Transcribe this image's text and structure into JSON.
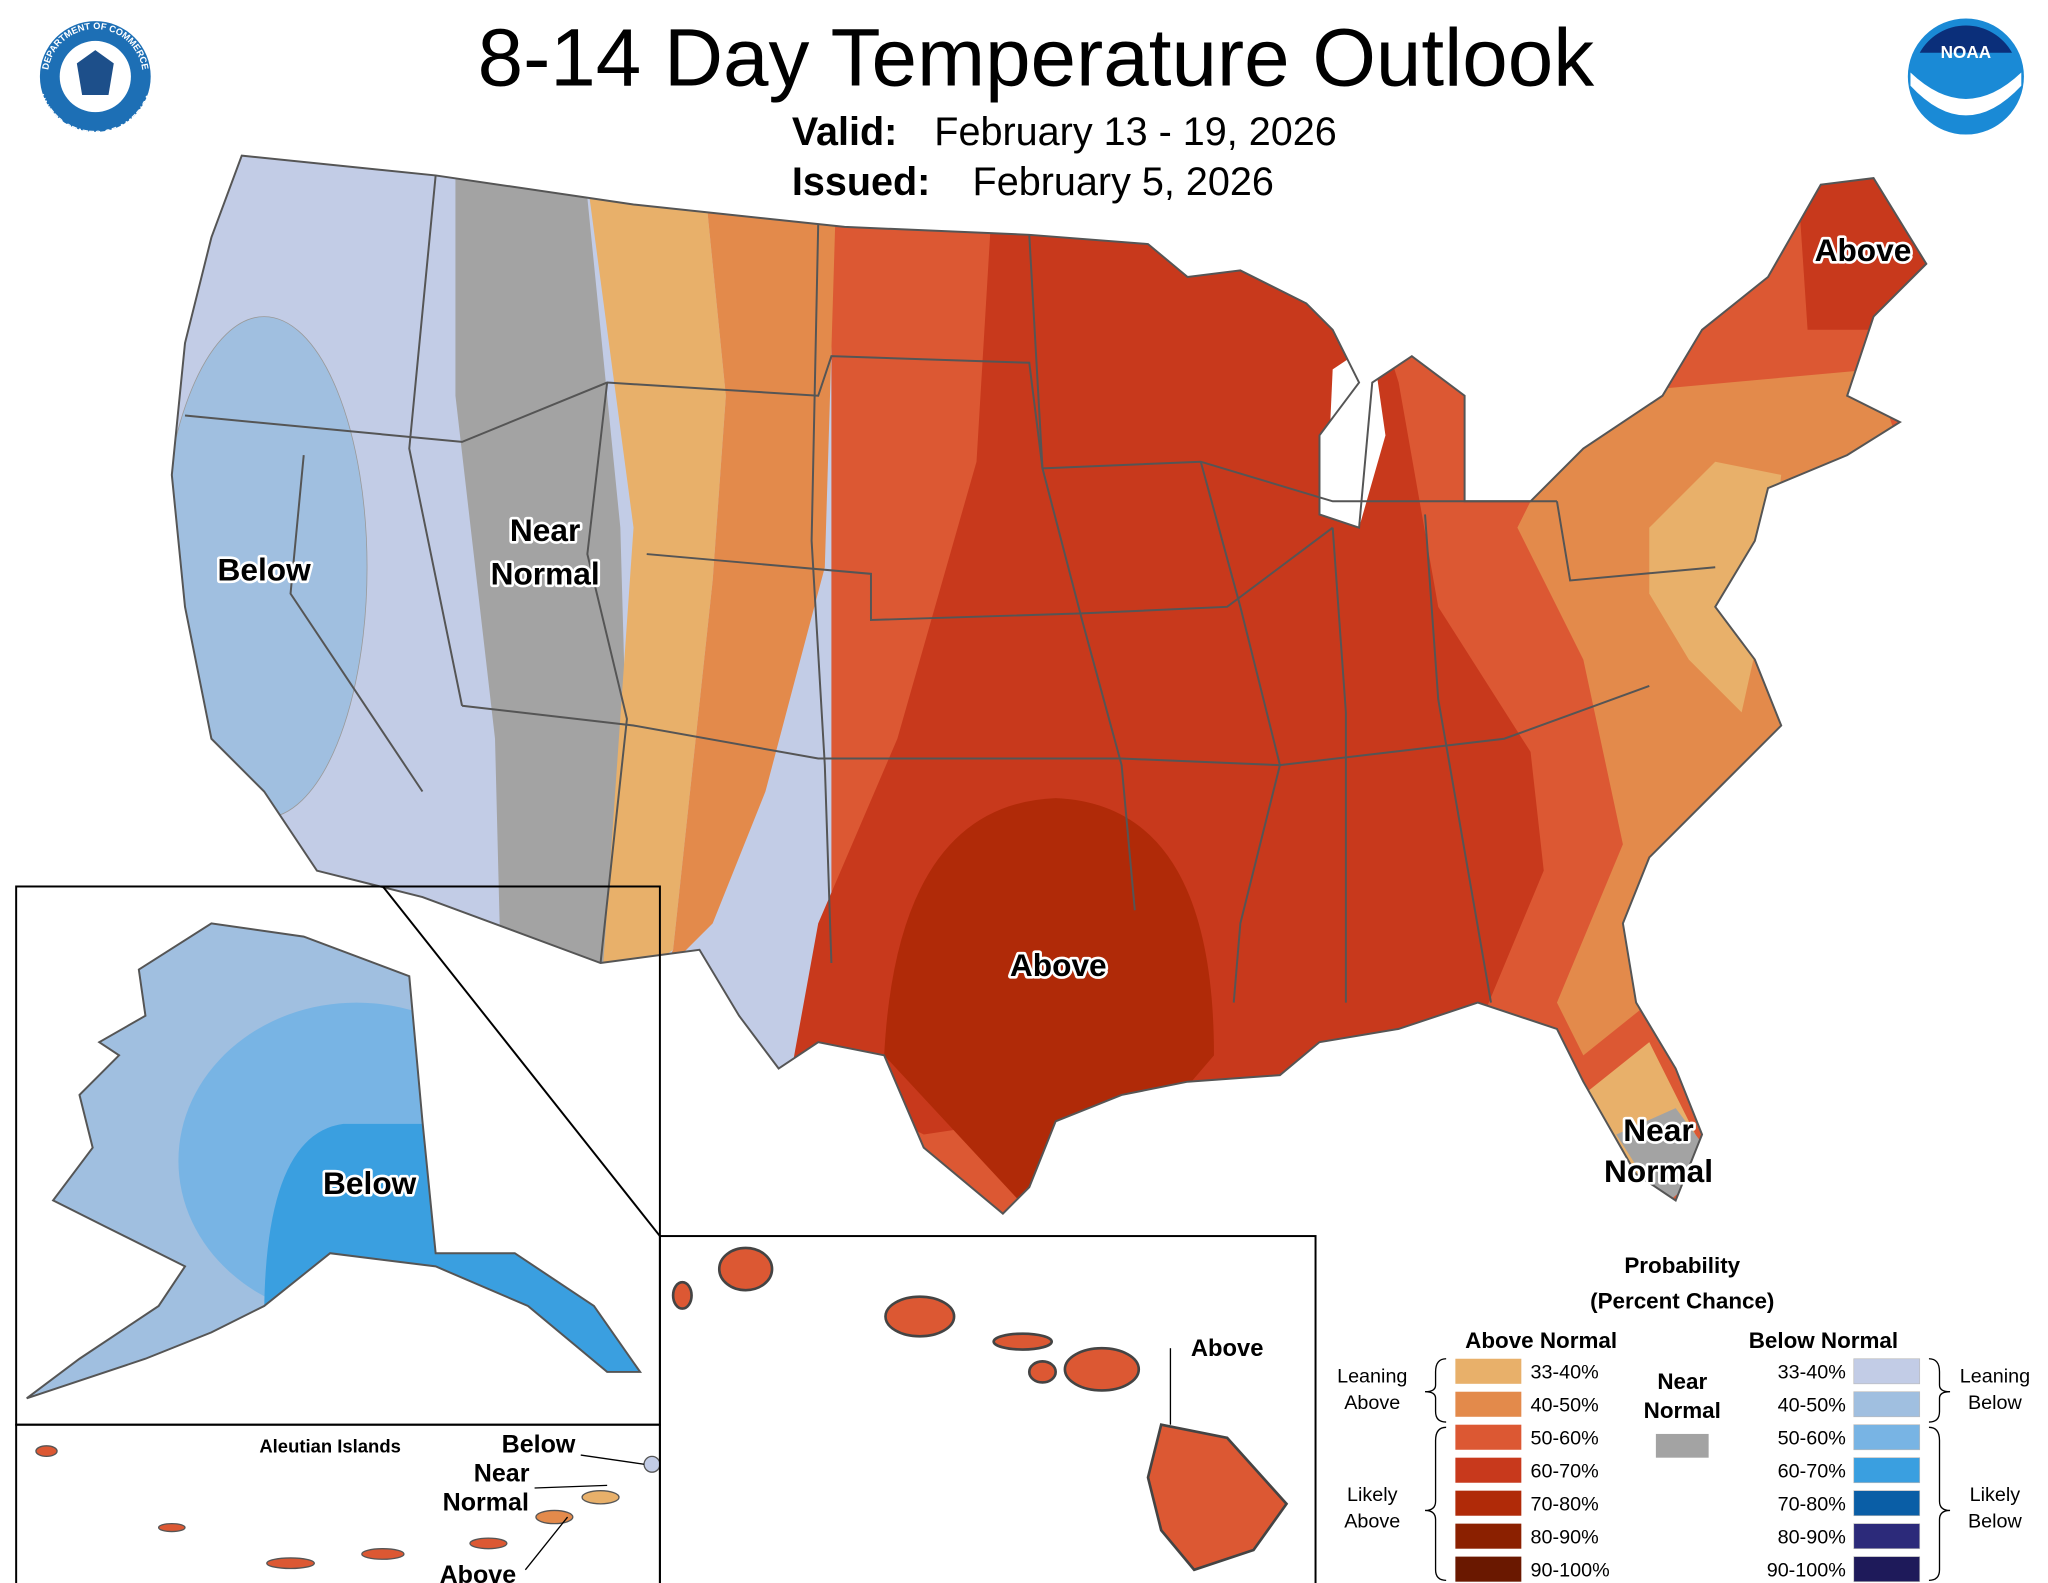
{
  "header": {
    "title": "8-14 Day Temperature Outlook",
    "valid_label": "Valid:",
    "valid": "February 13 - 19, 2026",
    "issued_label": "Issued:",
    "issued": "February 5, 2026"
  },
  "logos": {
    "commerce_top": "DEPARTMENT OF COMMERCE",
    "commerce_bottom": "UNITED STATES OF AMERICA",
    "noaa": "NOAA"
  },
  "map_labels": {
    "west": "Below",
    "rockies": [
      "Near",
      "Normal"
    ],
    "texas": "Above",
    "maine": "Above",
    "florida": [
      "Near",
      "Normal"
    ],
    "alaska": "Below",
    "aleutian_title": "Aleutian Islands",
    "aleutian_below": "Below",
    "aleutian_near": [
      "Near",
      "Normal"
    ],
    "aleutian_above": "Above",
    "hawaii": "Above"
  },
  "legend": {
    "title": [
      "Probability",
      "(Percent Chance)"
    ],
    "above_header": "Above Normal",
    "below_header": "Below Normal",
    "near_header": [
      "Near",
      "Normal"
    ],
    "near_color": "#a3a3a3",
    "leaning_above": [
      "Leaning",
      "Above"
    ],
    "likely_above": [
      "Likely",
      "Above"
    ],
    "leaning_below": [
      "Leaning",
      "Below"
    ],
    "likely_below": [
      "Likely",
      "Below"
    ],
    "above": [
      {
        "range": "33-40%",
        "color": "#e8b06a"
      },
      {
        "range": "40-50%",
        "color": "#e38a4b"
      },
      {
        "range": "50-60%",
        "color": "#dc5833"
      },
      {
        "range": "60-70%",
        "color": "#c8391c"
      },
      {
        "range": "70-80%",
        "color": "#b02a08"
      },
      {
        "range": "80-90%",
        "color": "#8b2000"
      },
      {
        "range": "90-100%",
        "color": "#6a1800"
      }
    ],
    "below": [
      {
        "range": "33-40%",
        "color": "#c2cce6"
      },
      {
        "range": "40-50%",
        "color": "#a0bfe0"
      },
      {
        "range": "50-60%",
        "color": "#78b4e4"
      },
      {
        "range": "60-70%",
        "color": "#3a9fe0"
      },
      {
        "range": "70-80%",
        "color": "#0a5ea6"
      },
      {
        "range": "80-90%",
        "color": "#2c2a7a"
      },
      {
        "range": "90-100%",
        "color": "#1e1a5a"
      }
    ]
  }
}
